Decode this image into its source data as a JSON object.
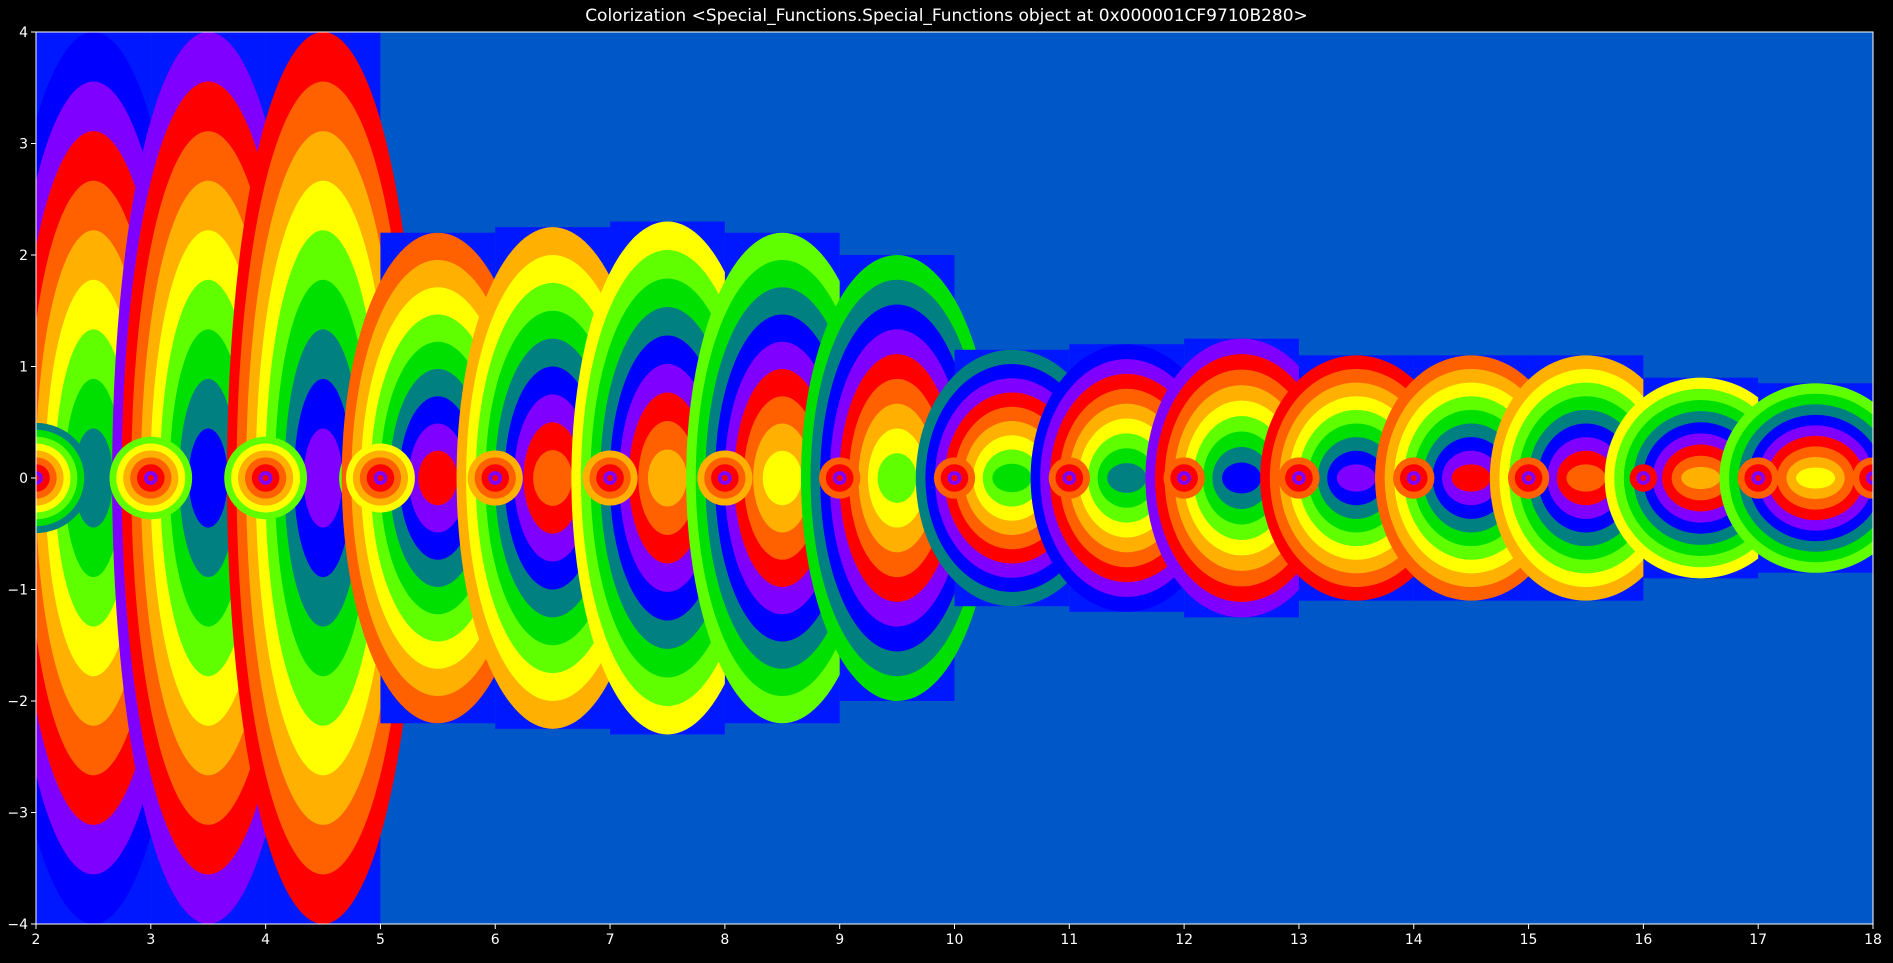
{
  "chart_data": {
    "type": "heatmap",
    "title": "Colorization <Special_Functions.Special_Functions object at 0x000001CF9710B280>",
    "xlabel": "",
    "ylabel": "",
    "xlim": [
      2,
      18
    ],
    "ylim": [
      -4,
      4
    ],
    "x_ticks": [
      "2",
      "3",
      "4",
      "5",
      "6",
      "7",
      "8",
      "9",
      "10",
      "11",
      "12",
      "13",
      "14",
      "15",
      "16",
      "17",
      "18"
    ],
    "y_ticks": [
      "4",
      "3",
      "2",
      "1",
      "0",
      "−1",
      "−2",
      "−3",
      "−4"
    ],
    "grid": false,
    "legend": "none",
    "colormap": "hsv (domain coloring by complex phase)",
    "background_color": "#0058c8",
    "segments": [
      {
        "x0": 2,
        "x1": 3,
        "band_half_height": 4.0,
        "ring_count": 8,
        "zeros": [
          2
        ]
      },
      {
        "x0": 3,
        "x1": 4,
        "band_half_height": 4.0,
        "ring_count": 6,
        "zeros": [
          3,
          4
        ]
      },
      {
        "x0": 4,
        "x1": 5,
        "band_half_height": 4.0,
        "ring_count": 6,
        "zeros": [
          4,
          5
        ]
      },
      {
        "x0": 5,
        "x1": 6,
        "band_half_height": 2.2,
        "ring_count": 5,
        "zeros": [
          5,
          6
        ]
      },
      {
        "x0": 6,
        "x1": 7,
        "band_half_height": 2.25,
        "ring_count": 4,
        "zeros": [
          6,
          7
        ]
      },
      {
        "x0": 7,
        "x1": 8,
        "band_half_height": 2.3,
        "ring_count": 4,
        "zeros": [
          7,
          8
        ]
      },
      {
        "x0": 8,
        "x1": 9,
        "band_half_height": 2.2,
        "ring_count": 4,
        "zeros": [
          8,
          9
        ]
      },
      {
        "x0": 9,
        "x1": 10,
        "band_half_height": 2.0,
        "ring_count": 3,
        "zeros": [
          9,
          10
        ]
      },
      {
        "x0": 10,
        "x1": 11,
        "band_half_height": 1.15,
        "ring_count": 3,
        "zeros": [
          10,
          11
        ]
      },
      {
        "x0": 11,
        "x1": 12,
        "band_half_height": 1.2,
        "ring_count": 3,
        "zeros": [
          11,
          12
        ]
      },
      {
        "x0": 12,
        "x1": 13,
        "band_half_height": 1.25,
        "ring_count": 3,
        "zeros": [
          12,
          13
        ]
      },
      {
        "x0": 13,
        "x1": 14,
        "band_half_height": 1.1,
        "ring_count": 3,
        "zeros": [
          13,
          14
        ]
      },
      {
        "x0": 14,
        "x1": 15,
        "band_half_height": 1.1,
        "ring_count": 3,
        "zeros": [
          14,
          15
        ]
      },
      {
        "x0": 15,
        "x1": 16,
        "band_half_height": 1.1,
        "ring_count": 3,
        "zeros": [
          15,
          16
        ]
      },
      {
        "x0": 16,
        "x1": 17,
        "band_half_height": 0.9,
        "ring_count": 2,
        "zeros": [
          16,
          17
        ]
      },
      {
        "x0": 17,
        "x1": 18,
        "band_half_height": 0.85,
        "ring_count": 3,
        "zeros": [
          17,
          18
        ]
      }
    ]
  }
}
